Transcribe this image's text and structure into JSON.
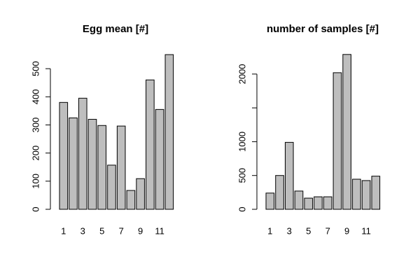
{
  "chart_data": [
    {
      "type": "bar",
      "title": "Egg mean [#]",
      "categories": [
        1,
        null,
        3,
        null,
        5,
        null,
        7,
        null,
        9,
        null,
        11,
        null
      ],
      "values": [
        380,
        325,
        395,
        320,
        298,
        157,
        296,
        67,
        109,
        460,
        355,
        550
      ],
      "color": "#bebebe",
      "ylim": [
        0,
        560
      ],
      "yticks": [
        0,
        100,
        200,
        300,
        400,
        500
      ]
    },
    {
      "type": "bar",
      "title": "number of samples [#]",
      "categories": [
        1,
        null,
        3,
        null,
        5,
        null,
        7,
        null,
        9,
        null,
        11,
        null
      ],
      "values": [
        240,
        500,
        990,
        270,
        165,
        185,
        185,
        2020,
        2290,
        445,
        425,
        490
      ],
      "color": "#bebebe",
      "ylim": [
        0,
        2350
      ],
      "yticks": [
        0,
        500,
        1000,
        {
          "value": 1500,
          "label": null
        },
        2000
      ]
    }
  ]
}
